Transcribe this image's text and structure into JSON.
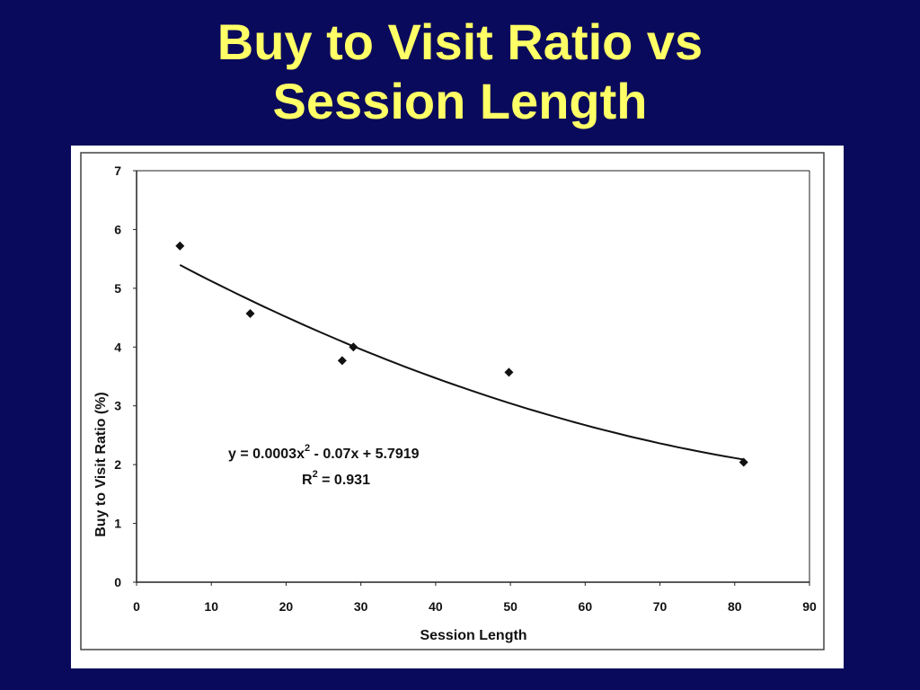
{
  "slide": {
    "title_line1": "Buy to Visit Ratio vs",
    "title_line2": "Session Length",
    "title_color": "#ffff66",
    "background_color": "#0a0a5c"
  },
  "chart_data": {
    "type": "scatter",
    "title": "",
    "xlabel": "Session Length",
    "ylabel": "Buy to Visit Ratio (%)",
    "xlim": [
      0,
      90
    ],
    "ylim": [
      0,
      7
    ],
    "x_ticks": [
      0,
      10,
      20,
      30,
      40,
      50,
      60,
      70,
      80,
      90
    ],
    "y_ticks": [
      0,
      1,
      2,
      3,
      4,
      5,
      6,
      7
    ],
    "x_tick_labels": [
      "0",
      "10",
      "20",
      "30",
      "40",
      "50",
      "60",
      "70",
      "80",
      "90"
    ],
    "y_tick_labels": [
      "0",
      "1",
      "2",
      "3",
      "4",
      "5",
      "6",
      "7"
    ],
    "grid": false,
    "points": [
      {
        "x": 5.8,
        "y": 5.72
      },
      {
        "x": 15.2,
        "y": 4.57
      },
      {
        "x": 27.5,
        "y": 3.77
      },
      {
        "x": 29.0,
        "y": 4.0
      },
      {
        "x": 49.8,
        "y": 3.57
      },
      {
        "x": 81.2,
        "y": 2.04
      }
    ],
    "trendline": {
      "type": "polynomial",
      "coefficients": [
        0.0003,
        -0.07,
        5.7919
      ],
      "x_range": [
        5.8,
        81.2
      ]
    },
    "annotation": {
      "equation_prefix": "y = 0.0003x",
      "equation_exp": "2",
      "equation_suffix": " - 0.07x + 5.7919",
      "r2_prefix": "R",
      "r2_exp": "2",
      "r2_suffix": " = 0.931"
    }
  }
}
